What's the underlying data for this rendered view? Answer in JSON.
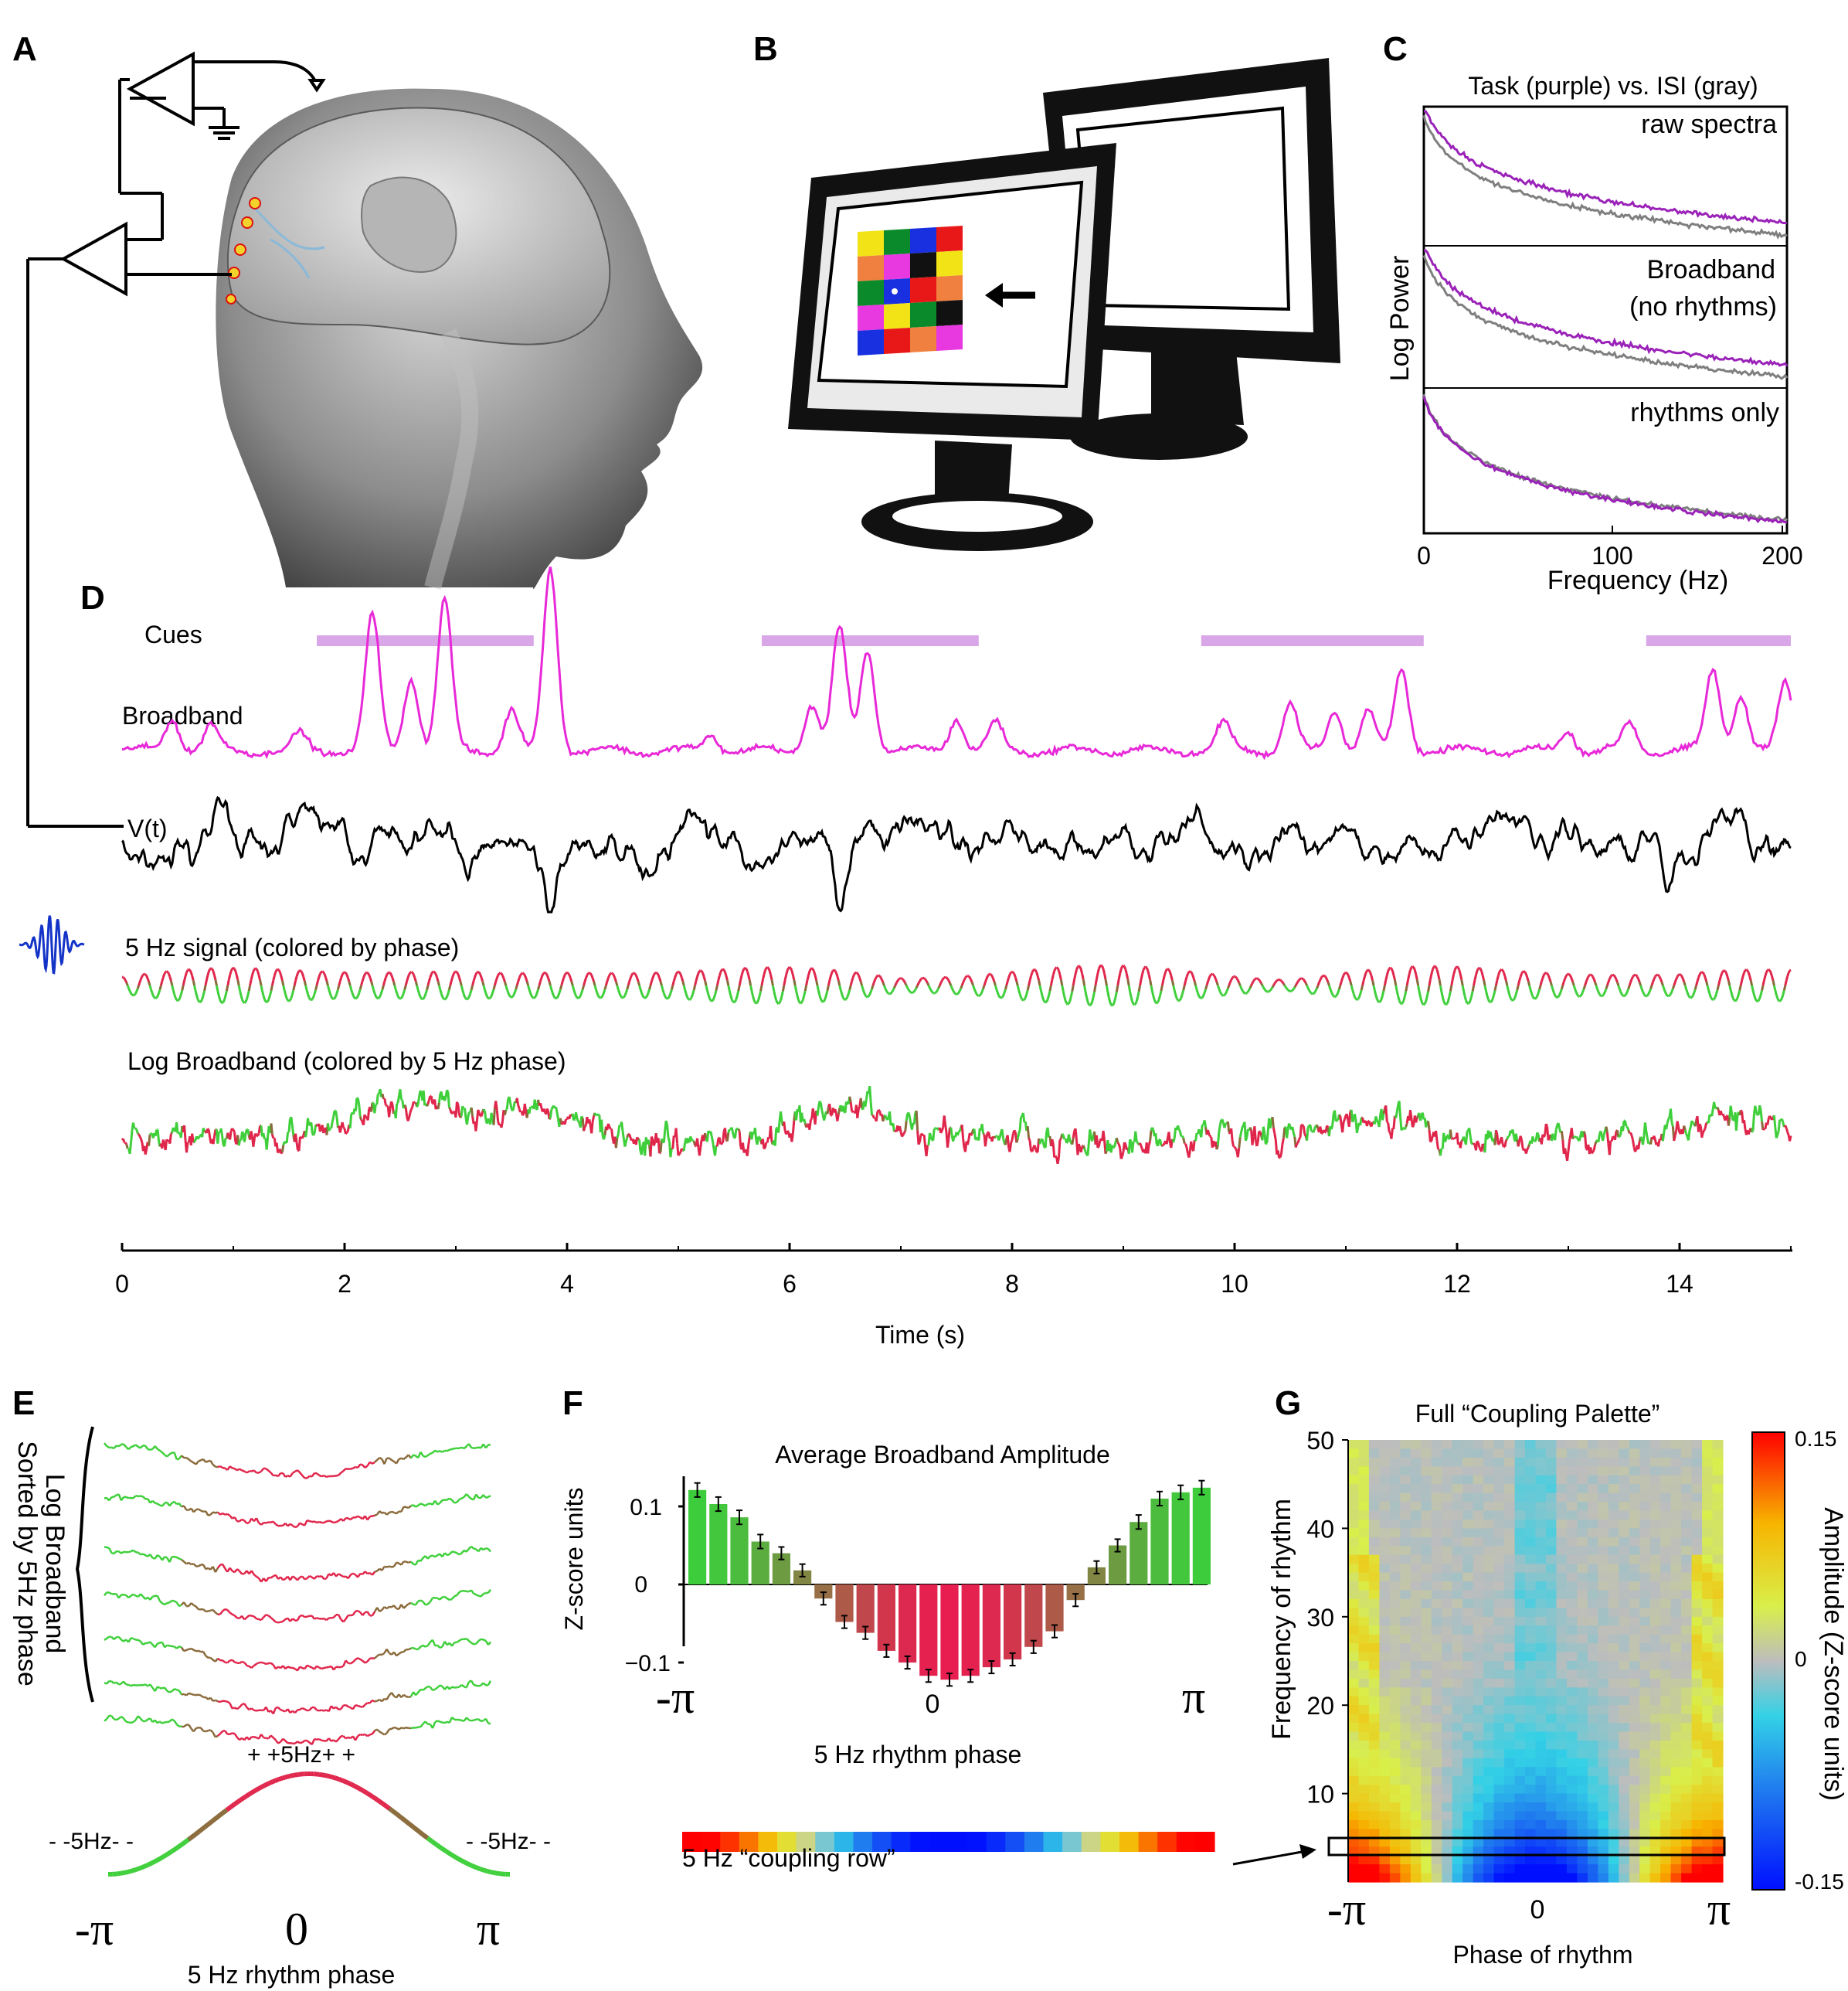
{
  "panels": {
    "A": "A",
    "B": "B",
    "C": "C",
    "D": "D",
    "E": "E",
    "F": "F",
    "G": "G"
  },
  "panel_c": {
    "title": "Task (purple) vs. ISI (gray)",
    "ylabel": "Log Power",
    "xlabel": "Frequency (Hz)",
    "xticks": [
      "0",
      "100",
      "200"
    ],
    "subpanels": [
      "raw spectra",
      "Broadband",
      "(no rhythms)",
      "rhythms only"
    ],
    "colors": {
      "task": "#9a22b8",
      "isi": "#7f7f7f"
    }
  },
  "panel_d": {
    "rows": {
      "cues": "Cues",
      "broadband": "Broadband",
      "voltage": "V(t)",
      "five_hz": "5 Hz signal (colored by phase)",
      "log_broadband": "Log Broadband (colored by 5 Hz phase)"
    },
    "xlabel": "Time (s)",
    "xticks": [
      "0",
      "2",
      "4",
      "6",
      "8",
      "10",
      "12",
      "14"
    ],
    "cue_intervals_s": [
      [
        1.75,
        3.7
      ],
      [
        5.75,
        7.7
      ],
      [
        9.7,
        11.7
      ],
      [
        13.7,
        15.0
      ]
    ],
    "colors": {
      "cue": "#d9a6e8",
      "broadband": "#e829d8",
      "voltage": "#000000",
      "wave_icon": "#1434c8"
    }
  },
  "panel_e": {
    "side_label_1": "Log Broadband",
    "side_label_2": "Sorted by 5Hz phase",
    "top_label": "+ +5Hz+ +",
    "left_label": "- -5Hz- -",
    "right_label": "- -5Hz- -",
    "x_left": "-π",
    "x_mid": "0",
    "x_right": "π",
    "xlabel": "5 Hz rhythm phase"
  },
  "panel_f": {
    "title": "Average Broadband Amplitude",
    "ylabel": "Z-score units",
    "yticks": [
      "0.1",
      "0",
      "−0.1"
    ],
    "x_left": "-π",
    "x_mid": "0",
    "x_right": "π",
    "xlabel": "5 Hz rhythm phase",
    "row_label": "5 Hz “coupling row”"
  },
  "panel_g": {
    "title": "Full “Coupling Palette”",
    "ylabel": "Frequency of rhythm",
    "xlabel": "Phase of rhythm",
    "yticks": [
      "50",
      "40",
      "30",
      "20",
      "10"
    ],
    "x_left": "-π",
    "x_mid": "0",
    "x_right": "π",
    "colorbar_label": "Amplitude (Z-score units)",
    "colorbar_ticks": [
      "0.15",
      "0",
      "-0.15"
    ]
  },
  "chart_data": [
    {
      "type": "bar",
      "title": "Average Broadband Amplitude",
      "xlabel": "5 Hz rhythm phase",
      "ylabel": "Z-score units",
      "xlim": [
        "-π",
        "π"
      ],
      "ylim": [
        -0.15,
        0.15
      ],
      "values": [
        0.121,
        0.103,
        0.086,
        0.055,
        0.04,
        0.018,
        -0.018,
        -0.048,
        -0.062,
        -0.085,
        -0.1,
        -0.117,
        -0.122,
        -0.117,
        -0.106,
        -0.096,
        -0.08,
        -0.06,
        -0.02,
        0.022,
        0.05,
        0.08,
        0.11,
        0.118,
        0.124
      ],
      "errors": [
        0.018,
        0.018,
        0.018,
        0.018,
        0.016,
        0.016,
        0.016,
        0.016,
        0.016,
        0.016,
        0.016,
        0.016,
        0.016,
        0.016,
        0.016,
        0.016,
        0.016,
        0.016,
        0.016,
        0.016,
        0.016,
        0.018,
        0.018,
        0.018,
        0.018
      ]
    },
    {
      "type": "line",
      "title": "Task (purple) vs. ISI (gray)",
      "xlabel": "Frequency (Hz)",
      "ylabel": "Log Power",
      "xlim": [
        0,
        200
      ]
    },
    {
      "type": "heatmap",
      "title": "Full “Coupling Palette”",
      "xlabel": "Phase of rhythm",
      "ylabel": "Frequency of rhythm",
      "xlim": [
        "-π",
        "π"
      ],
      "ylim": [
        0,
        50
      ],
      "colorbar": {
        "min": -0.15,
        "max": 0.15,
        "label": "Amplitude (Z-score units)"
      }
    }
  ]
}
